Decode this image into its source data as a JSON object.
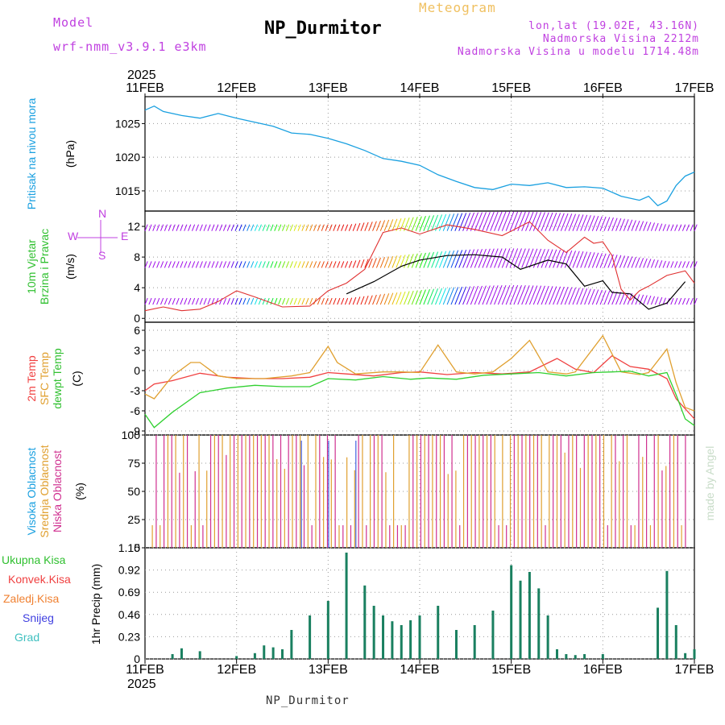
{
  "header": {
    "model_label": "Model",
    "model_name": "wrf-nmm_v3.9.1  e3km",
    "title": "NP_Durmitor",
    "subtitle": "Meteogram",
    "lonlat": "lon,lat (19.02E, 43.16N)",
    "altitude": "Nadmorska Visina 2212m",
    "model_altitude": "Nadmorska Visina u modelu 1714.48m",
    "footer_station": "NP_Durmitor",
    "watermark": "made by Angel"
  },
  "time_axis": {
    "year": "2025",
    "labels": [
      "11FEB",
      "12FEB",
      "13FEB",
      "14FEB",
      "15FEB",
      "16FEB",
      "17FEB"
    ]
  },
  "chart_data": [
    {
      "type": "line",
      "id": "pressure",
      "labels": [
        "Pritisak na nivou mora"
      ],
      "unit": "(hPa)",
      "ylim": [
        1012,
        1029
      ],
      "yticks": [
        1015,
        1020,
        1025
      ],
      "series": [
        {
          "name": "Pritisak na nivou mora",
          "color": "#1aa0e0",
          "x": [
            0,
            0.1,
            0.2,
            0.4,
            0.6,
            0.8,
            1.0,
            1.2,
            1.4,
            1.6,
            1.8,
            2.0,
            2.2,
            2.4,
            2.6,
            2.8,
            3.0,
            3.2,
            3.4,
            3.6,
            3.8,
            4.0,
            4.2,
            4.4,
            4.6,
            4.8,
            5.0,
            5.2,
            5.4,
            5.5,
            5.6,
            5.7,
            5.8,
            5.9,
            6.0
          ],
          "values": [
            1027,
            1027.6,
            1026.8,
            1026.2,
            1025.8,
            1026.5,
            1025.8,
            1025.2,
            1024.6,
            1023.6,
            1023.4,
            1022.8,
            1022,
            1021,
            1019.8,
            1019.4,
            1018.8,
            1017.4,
            1016.4,
            1015.5,
            1015.2,
            1016,
            1015.8,
            1016.2,
            1015.5,
            1015.6,
            1015.4,
            1014.2,
            1013.6,
            1014.2,
            1012.8,
            1013.5,
            1015.8,
            1017.2,
            1017.8
          ]
        }
      ]
    },
    {
      "type": "line",
      "id": "wind",
      "labels": [
        "10m Vjetar",
        "Brzina i Pravac"
      ],
      "unit": "(m/s)",
      "compass": [
        "N",
        "S",
        "E",
        "W"
      ],
      "ylim": [
        -0.5,
        14
      ],
      "yticks": [
        0,
        4,
        8,
        12
      ],
      "series": [
        {
          "name": "Brzina",
          "color": "#000000",
          "x": [
            2.2,
            2.5,
            2.8,
            3.0,
            3.3,
            3.6,
            3.9,
            4.1,
            4.4,
            4.6,
            4.8,
            5.0,
            5.1,
            5.3,
            5.5,
            5.7,
            5.9
          ],
          "values": [
            3.2,
            4.8,
            6.8,
            7.6,
            8.2,
            8.3,
            8.0,
            6.4,
            7.6,
            7.1,
            4.2,
            4.9,
            3.4,
            3.2,
            1.2,
            2.0,
            4.8
          ]
        },
        {
          "name": "Udari",
          "color": "#e03030",
          "x": [
            0,
            0.2,
            0.4,
            0.6,
            0.8,
            1.0,
            1.2,
            1.5,
            1.8,
            2.0,
            2.2,
            2.4,
            2.6,
            2.8,
            3.0,
            3.3,
            3.6,
            3.9,
            4.2,
            4.4,
            4.6,
            4.8,
            4.9,
            5.0,
            5.1,
            5.2,
            5.3,
            5.4,
            5.5,
            5.7,
            5.9,
            6.0
          ],
          "values": [
            1,
            1.5,
            1,
            1.2,
            2.2,
            3.6,
            2.8,
            1.5,
            1.6,
            3.6,
            4.6,
            6.4,
            11.2,
            11.8,
            11.0,
            12.2,
            11.6,
            10.8,
            12.6,
            10.2,
            8.6,
            10.6,
            9.8,
            10.0,
            8.2,
            3.8,
            2.4,
            3.6,
            4.2,
            5.6,
            6.2,
            4.6
          ]
        }
      ]
    },
    {
      "type": "line",
      "id": "temperature",
      "labels": [
        "2m Temp",
        "SFC Temp",
        "dewpt Temp"
      ],
      "unit": "(C)",
      "ylim": [
        -9.6,
        7.2
      ],
      "yticks": [
        -9,
        -6,
        -3,
        0,
        3,
        6
      ],
      "series": [
        {
          "name": "2m Temp",
          "color": "#f04040",
          "x": [
            0,
            0.1,
            0.3,
            0.6,
            0.9,
            1.2,
            1.5,
            1.8,
            2.0,
            2.2,
            2.5,
            2.8,
            3.0,
            3.3,
            3.6,
            3.9,
            4.2,
            4.5,
            4.7,
            4.9,
            5.1,
            5.3,
            5.5,
            5.7,
            5.8,
            6.0
          ],
          "values": [
            -3,
            -2,
            -1.5,
            -0.4,
            -1,
            -1.2,
            -1.2,
            -1,
            -0.3,
            -0.5,
            -0.8,
            -0.3,
            -0.2,
            -0.6,
            -0.3,
            -0.5,
            -0.2,
            1.8,
            0.2,
            -0.3,
            2.2,
            0.6,
            0.2,
            -1.2,
            -4.2,
            -7.2
          ]
        },
        {
          "name": "SFC Temp",
          "color": "#e0a030",
          "x": [
            0,
            0.1,
            0.3,
            0.5,
            0.6,
            0.8,
            1.0,
            1.3,
            1.6,
            1.8,
            2.0,
            2.1,
            2.3,
            2.6,
            2.8,
            3.0,
            3.2,
            3.4,
            3.6,
            3.8,
            4.0,
            4.2,
            4.4,
            4.6,
            4.7,
            5.0,
            5.2,
            5.4,
            5.5,
            5.7,
            5.8,
            5.9,
            6.0
          ],
          "values": [
            -3.5,
            -4.2,
            -0.8,
            1.2,
            1.2,
            -0.8,
            -1.2,
            -1.2,
            -0.8,
            -0.3,
            3.6,
            1.2,
            -0.5,
            -0.2,
            -0.2,
            -0.3,
            3.8,
            -0.2,
            -0.5,
            -0.2,
            1.8,
            4.5,
            -0.2,
            -0.5,
            -0.2,
            5.2,
            -0.2,
            -0.6,
            -0.3,
            3.2,
            -1.8,
            -5.5,
            -6
          ]
        },
        {
          "name": "dewpt Temp",
          "color": "#30d030",
          "x": [
            0,
            0.1,
            0.3,
            0.6,
            0.9,
            1.2,
            1.5,
            1.8,
            2.0,
            2.3,
            2.6,
            2.9,
            3.1,
            3.4,
            3.7,
            4.0,
            4.3,
            4.6,
            4.9,
            5.1,
            5.3,
            5.5,
            5.7,
            5.8,
            5.9,
            6.0
          ],
          "values": [
            -6.5,
            -8.5,
            -6.2,
            -3.3,
            -2.6,
            -2.2,
            -2.4,
            -2.4,
            -1.2,
            -1.4,
            -0.9,
            -1.3,
            -1.1,
            -1.3,
            -0.7,
            -0.5,
            -0.3,
            -0.8,
            -0.3,
            -0.2,
            -0.1,
            -0.8,
            -0.3,
            -3.6,
            -7.2,
            -8.2
          ]
        }
      ]
    },
    {
      "type": "bar",
      "id": "clouds",
      "labels": [
        "Visoka Oblacnost",
        "Srednja Oblacnost",
        "Niska Oblacnost"
      ],
      "unit": "(%)",
      "ylim": [
        0,
        100
      ],
      "yticks": [
        0,
        25,
        50,
        75,
        100
      ],
      "series": [
        {
          "name": "Visoka Oblacnost",
          "color": "#4060e0"
        },
        {
          "name": "Srednja Oblacnost",
          "color": "#e0a030"
        },
        {
          "name": "Niska Oblacnost",
          "color": "#d03090"
        }
      ]
    },
    {
      "type": "bar",
      "id": "precip",
      "labels": [
        "Ukupna Kisa",
        "Konvek.Kisa",
        "Zaledj.Kisa",
        "Snijeg",
        "Grad"
      ],
      "label_colors": [
        "#30c030",
        "#f04040",
        "#f08030",
        "#4040e0",
        "#40c0c0"
      ],
      "unit": "1hr Precip (mm)",
      "ylim": [
        0,
        1.15
      ],
      "yticks": [
        "0",
        "0.23",
        "0.46",
        "0.69",
        "0.92",
        "1.15"
      ],
      "series": [
        {
          "name": "Ukupna Kisa",
          "color": "#1a8060",
          "x": [
            0.3,
            0.4,
            0.6,
            1.0,
            1.2,
            1.3,
            1.4,
            1.5,
            1.6,
            1.8,
            2.0,
            2.2,
            2.4,
            2.5,
            2.6,
            2.7,
            2.8,
            2.9,
            3.0,
            3.2,
            3.4,
            3.6,
            3.8,
            4.0,
            4.1,
            4.2,
            4.3,
            4.4,
            4.5,
            4.6,
            4.7,
            4.8,
            5.0,
            5.6,
            5.7,
            5.8,
            5.9,
            6.0
          ],
          "values": [
            0.05,
            0.11,
            0.08,
            0.03,
            0.06,
            0.14,
            0.12,
            0.1,
            0.3,
            0.45,
            0.6,
            1.1,
            0.76,
            0.55,
            0.45,
            0.39,
            0.35,
            0.4,
            0.45,
            0.55,
            0.3,
            0.35,
            0.5,
            0.97,
            0.81,
            0.9,
            0.73,
            0.45,
            0.1,
            0.05,
            0.04,
            0.05,
            0.05,
            0.53,
            0.91,
            0.35,
            0.06,
            0.1
          ]
        }
      ]
    }
  ]
}
